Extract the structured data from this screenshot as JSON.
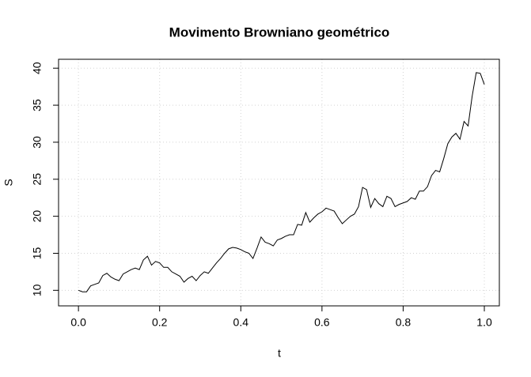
{
  "chart_data": {
    "type": "line",
    "title": "Movimento Browniano geométrico",
    "x_label": "t",
    "y_label": "S",
    "x": [
      0,
      0.01,
      0.02,
      0.03,
      0.04,
      0.05,
      0.06,
      0.07,
      0.08,
      0.09,
      0.1,
      0.11,
      0.12,
      0.13,
      0.14,
      0.15,
      0.16,
      0.17,
      0.18,
      0.19,
      0.2,
      0.21,
      0.22,
      0.23,
      0.24,
      0.25,
      0.26,
      0.27,
      0.28,
      0.29,
      0.3,
      0.31,
      0.32,
      0.33,
      0.34,
      0.35,
      0.36,
      0.37,
      0.38,
      0.39,
      0.4,
      0.41,
      0.42,
      0.43,
      0.44,
      0.45,
      0.46,
      0.47,
      0.48,
      0.49,
      0.5,
      0.51,
      0.52,
      0.53,
      0.54,
      0.55,
      0.56,
      0.57,
      0.58,
      0.59,
      0.6,
      0.61,
      0.62,
      0.63,
      0.64,
      0.65,
      0.66,
      0.67,
      0.68,
      0.69,
      0.7,
      0.71,
      0.72,
      0.73,
      0.74,
      0.75,
      0.76,
      0.77,
      0.78,
      0.79,
      0.8,
      0.81,
      0.82,
      0.83,
      0.84,
      0.85,
      0.86,
      0.87,
      0.88,
      0.89,
      0.9,
      0.91,
      0.92,
      0.93,
      0.94,
      0.95,
      0.96,
      0.97,
      0.98,
      0.99,
      1
    ],
    "series": [
      {
        "color": "#000000",
        "values": [
          10.0,
          9.8,
          9.8,
          10.6,
          10.8,
          11.0,
          12.0,
          12.3,
          11.8,
          11.5,
          11.3,
          12.2,
          12.5,
          12.8,
          13.0,
          12.8,
          14.1,
          14.6,
          13.4,
          13.9,
          13.7,
          13.1,
          13.1,
          12.5,
          12.2,
          11.9,
          11.1,
          11.6,
          11.9,
          11.3,
          12.0,
          12.5,
          12.3,
          13.0,
          13.7,
          14.3,
          15.0,
          15.6,
          15.8,
          15.7,
          15.5,
          15.2,
          15.0,
          14.3,
          15.7,
          17.2,
          16.5,
          16.3,
          16.0,
          16.8,
          17.0,
          17.3,
          17.5,
          17.5,
          18.9,
          18.8,
          20.5,
          19.2,
          19.8,
          20.3,
          20.6,
          21.1,
          20.9,
          20.7,
          19.8,
          19.0,
          19.5,
          20.0,
          20.3,
          21.3,
          23.9,
          23.6,
          21.2,
          22.4,
          21.7,
          21.3,
          22.7,
          22.4,
          21.3,
          21.6,
          21.8,
          22.0,
          22.5,
          22.3,
          23.4,
          23.4,
          24.0,
          25.5,
          26.2,
          26.0,
          27.8,
          29.8,
          30.7,
          31.2,
          30.4,
          32.8,
          32.2,
          36.2,
          39.4,
          39.3,
          37.8
        ]
      }
    ],
    "xlim": [
      -0.049,
      1.037
    ],
    "ylim": [
      7.9,
      41.2
    ],
    "xticks": [
      {
        "value": 0,
        "label": "0.0"
      },
      0.2,
      0.4,
      0.6,
      0.8,
      {
        "value": 1,
        "label": "1.0"
      }
    ],
    "yticks": [
      10,
      15,
      20,
      25,
      30,
      35,
      40
    ],
    "grid": true
  }
}
